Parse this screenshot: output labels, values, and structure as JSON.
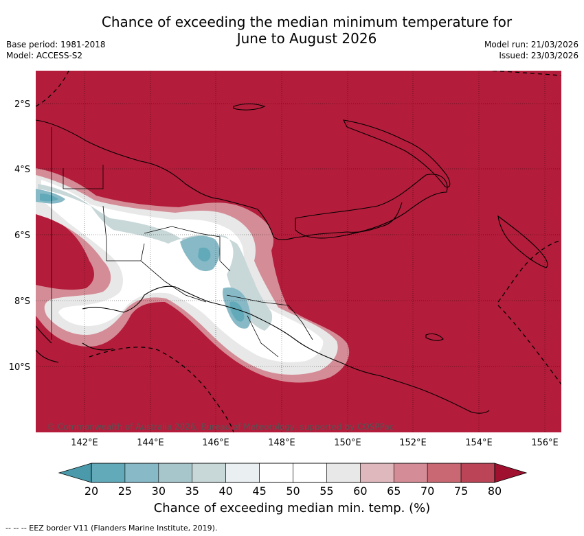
{
  "header": {
    "title_line1": "Chance of exceeding the median minimum temperature for",
    "title_line2": "June to August 2026",
    "base_period": "Base period: 1981-2018",
    "model": "Model: ACCESS-S2",
    "model_run": "Model run: 21/03/2026",
    "issued": "Issued: 23/03/2026"
  },
  "map": {
    "lat_labels": [
      "2°S",
      "4°S",
      "6°S",
      "8°S",
      "10°S"
    ],
    "lon_labels": [
      "142°E",
      "144°E",
      "146°E",
      "148°E",
      "150°E",
      "152°E",
      "154°E",
      "156°E"
    ],
    "copyright": "© Commonwealth of Australia 2026, Bureau of Meteorology, supported by COSPPac"
  },
  "colorbar": {
    "ticks": [
      "20",
      "25",
      "30",
      "35",
      "40",
      "45",
      "50",
      "55",
      "60",
      "65",
      "70",
      "75",
      "80"
    ],
    "colors": [
      "#62aab9",
      "#87b9c6",
      "#a7c6cb",
      "#c8d7d8",
      "#eaf0f1",
      "#ffffff",
      "#ffffff",
      "#e8e8e8",
      "#dfb8bd",
      "#d48c96",
      "#c96873",
      "#bb4556"
    ],
    "label": "Chance of exceeding median min. temp. (%)"
  },
  "footnote": "-- --  -- EEZ border V11 (Flanders Marine Institute, 2019).",
  "colors": {
    "high": "#b31c3a",
    "low": "#4a9aab"
  }
}
